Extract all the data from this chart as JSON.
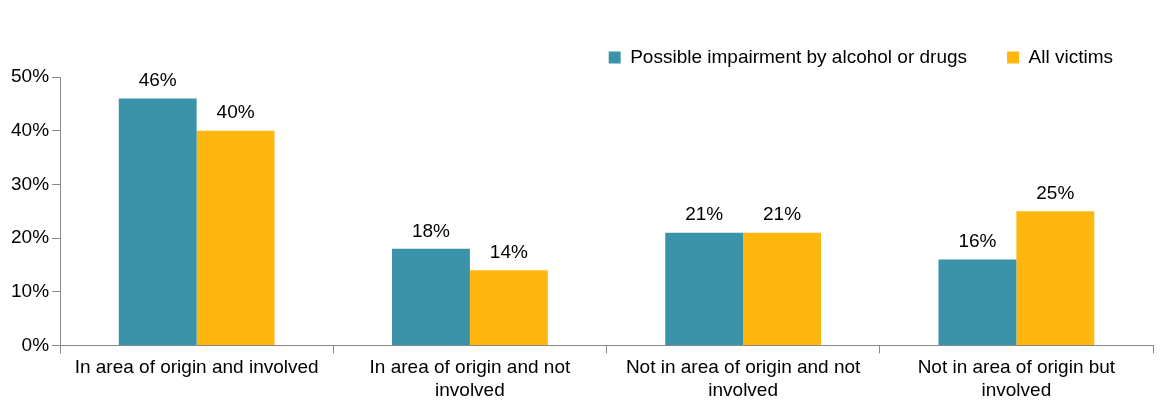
{
  "chart_data": {
    "type": "bar",
    "categories": [
      "In area of origin and involved",
      "In area of origin and not involved",
      "Not in area of origin and not involved",
      "Not in area of origin but involved"
    ],
    "series": [
      {
        "name": "Possible impairment by alcohol or drugs",
        "color": "#3a93a8",
        "values": [
          46,
          18,
          21,
          16
        ],
        "value_labels": [
          "46%",
          "18%",
          "21%",
          "16%"
        ]
      },
      {
        "name": "All victims",
        "color": "#ffb60f",
        "values": [
          40,
          14,
          21,
          25
        ],
        "value_labels": [
          "40%",
          "14%",
          "21%",
          "25%"
        ]
      }
    ],
    "ylim": [
      0,
      50
    ],
    "yticks": [
      {
        "value": 0,
        "label": "0%"
      },
      {
        "value": 10,
        "label": "10%"
      },
      {
        "value": 20,
        "label": "20%"
      },
      {
        "value": 30,
        "label": "30%"
      },
      {
        "value": 40,
        "label": "40%"
      },
      {
        "value": 50,
        "label": "50%"
      }
    ],
    "legend": "top right"
  }
}
